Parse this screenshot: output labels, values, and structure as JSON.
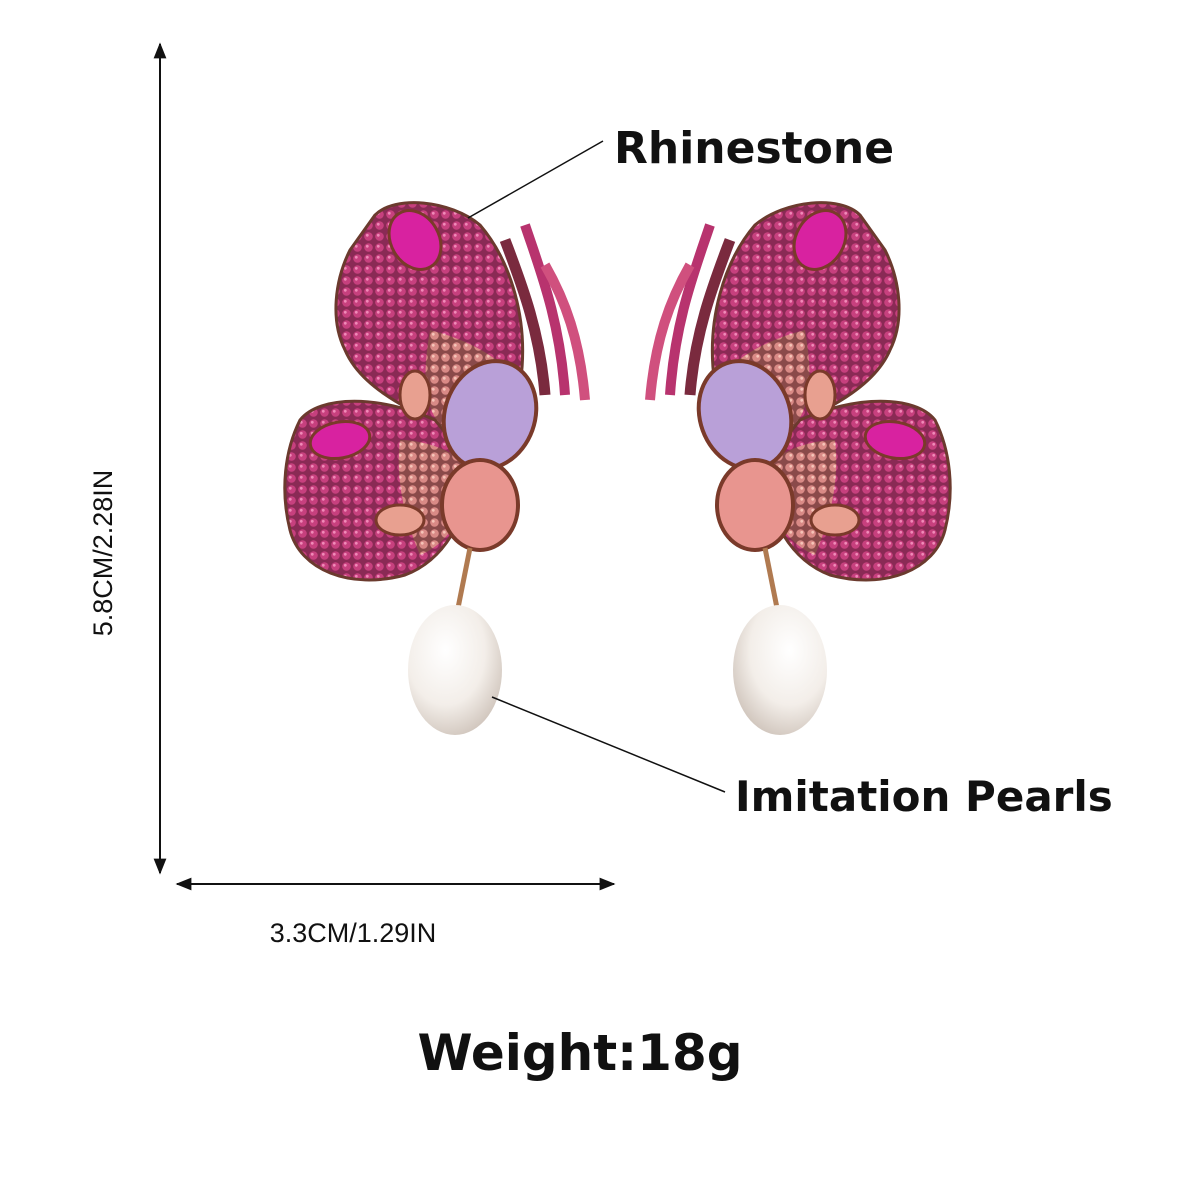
{
  "labels": {
    "rhinestone": "Rhinestone",
    "pearls": "Imitation Pearls"
  },
  "dimensions": {
    "height": "5.8CM/2.28IN",
    "width": "3.3CM/1.29IN"
  },
  "weight": "Weight:18g"
}
